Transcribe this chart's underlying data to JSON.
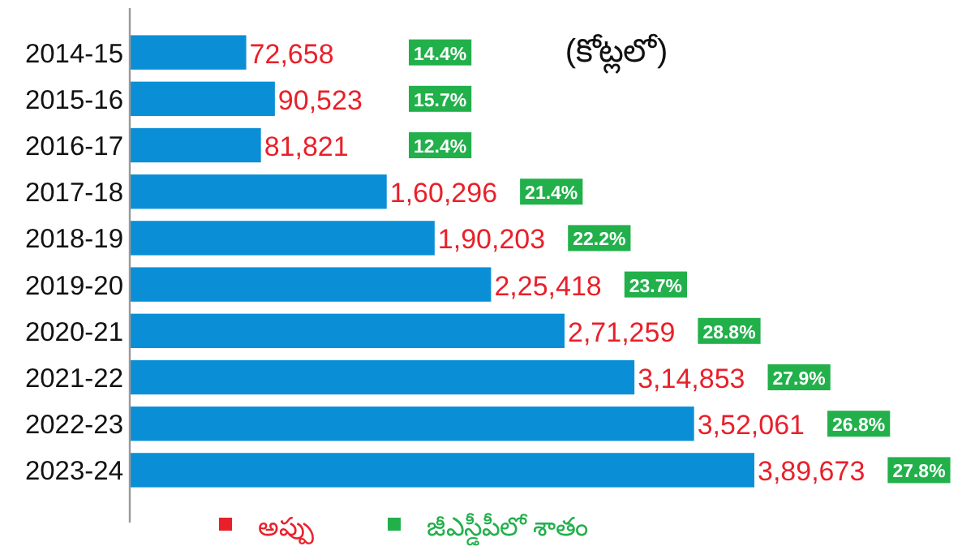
{
  "chart_data": {
    "type": "bar",
    "orientation": "horizontal",
    "legend": "bottom",
    "subtitle": "(కోట్లలో)",
    "annotations": [
      "14.4%",
      "15.7%",
      "12.4%",
      "21.4%",
      "22.2%",
      "23.7%",
      "28.8%",
      "27.9%",
      "26.8%",
      "27.8%",
      "జీఎస్డీపీలో శాతం"
    ],
    "categories": [
      "2014-15",
      "2015-16",
      "2016-17",
      "2017-18",
      "2018-19",
      "2019-20",
      "2020-21",
      "2021-22",
      "2022-23",
      "2023-24"
    ],
    "series": [
      {
        "name": "అప్పు",
        "color": "#0a8fd6",
        "values": [
          72658,
          90523,
          81821,
          160296,
          190203,
          225418,
          271259,
          314853,
          352061,
          389673
        ],
        "value_labels": [
          "72,658",
          "90,523",
          "81,821",
          "1,60,296",
          "1,90,203",
          "2,25,418",
          "2,71,259",
          "3,14,853",
          "3,52,061",
          "3,89,673"
        ]
      }
    ]
  }
}
